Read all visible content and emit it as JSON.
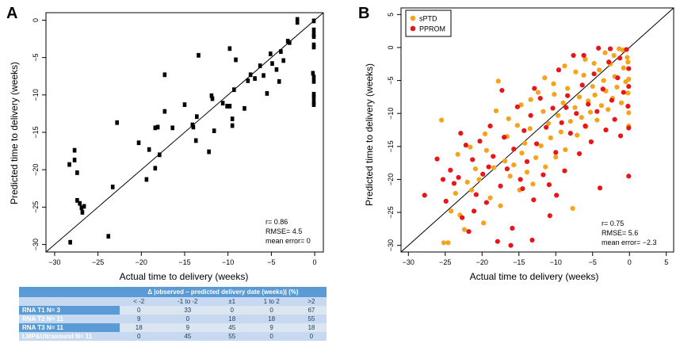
{
  "panels": {
    "a_letter": "A",
    "b_letter": "B"
  },
  "chart_data": [
    {
      "type": "scatter",
      "panel": "A",
      "xlabel": "Actual time to delivery (weeks)",
      "ylabel": "Predicted time to delivery (weeks)",
      "xlim": [
        -31,
        1
      ],
      "ylim": [
        -31,
        1
      ],
      "xticks": [
        -30,
        -25,
        -20,
        -15,
        -10,
        -5,
        0
      ],
      "yticks": [
        -30,
        -25,
        -20,
        -15,
        -10,
        -5,
        0
      ],
      "marker": "square",
      "marker_color": "#000000",
      "identity_line": true,
      "annotations": [
        "r= 0.86",
        "RMSE= 4.5",
        "mean error= 0"
      ],
      "points": [
        [
          -28.2,
          -29.7
        ],
        [
          -28.3,
          -19.3
        ],
        [
          -27.7,
          -17.4
        ],
        [
          -27.7,
          -18.7
        ],
        [
          -27.4,
          -20.4
        ],
        [
          -27.4,
          -24.1
        ],
        [
          -27.1,
          -24.5
        ],
        [
          -26.9,
          -25.1
        ],
        [
          -26.8,
          -25.7
        ],
        [
          -26.6,
          -24.9
        ],
        [
          -23.8,
          -28.9
        ],
        [
          -23.3,
          -22.3
        ],
        [
          -22.8,
          -13.7
        ],
        [
          -20.3,
          -16.4
        ],
        [
          -19.4,
          -21.3
        ],
        [
          -19.1,
          -17.3
        ],
        [
          -18.4,
          -14.4
        ],
        [
          -18.4,
          -19.8
        ],
        [
          -18.1,
          -14.3
        ],
        [
          -17.9,
          -18.0
        ],
        [
          -17.3,
          -12.2
        ],
        [
          -17.3,
          -7.3
        ],
        [
          -16.4,
          -14.4
        ],
        [
          -15.0,
          -11.3
        ],
        [
          -14.1,
          -14.0
        ],
        [
          -14.0,
          -14.3
        ],
        [
          -13.6,
          -12.9
        ],
        [
          -13.7,
          -16.1
        ],
        [
          -13.4,
          -4.7
        ],
        [
          -12.2,
          -17.6
        ],
        [
          -11.9,
          -10.1
        ],
        [
          -11.8,
          -10.5
        ],
        [
          -11.6,
          -14.8
        ],
        [
          -10.6,
          -11.1
        ],
        [
          -10.1,
          -11.5
        ],
        [
          -9.8,
          -11.5
        ],
        [
          -9.8,
          -3.8
        ],
        [
          -9.5,
          -14.1
        ],
        [
          -9.5,
          -13.2
        ],
        [
          -9.3,
          -9.3
        ],
        [
          -9.1,
          -5.3
        ],
        [
          -8.1,
          -11.8
        ],
        [
          -7.7,
          -8.1
        ],
        [
          -7.4,
          -7.3
        ],
        [
          -6.9,
          -7.8
        ],
        [
          -6.3,
          -6.1
        ],
        [
          -5.9,
          -7.4
        ],
        [
          -5.5,
          -9.8
        ],
        [
          -5.1,
          -4.5
        ],
        [
          -4.9,
          -5.8
        ],
        [
          -4.4,
          -6.6
        ],
        [
          -4.1,
          -8.2
        ],
        [
          -3.9,
          -4.2
        ],
        [
          -3.6,
          -5.4
        ],
        [
          -3.1,
          -2.8
        ],
        [
          -2.9,
          -3.0
        ],
        [
          -2.0,
          0.1
        ],
        [
          -2.0,
          -0.3
        ],
        [
          -0.1,
          -0.1
        ],
        [
          -0.1,
          -1.3
        ],
        [
          -0.1,
          -1.9
        ],
        [
          -0.1,
          -2.2
        ],
        [
          -0.1,
          -3.3
        ],
        [
          -0.1,
          -3.6
        ],
        [
          -0.2,
          -7.1
        ],
        [
          -0.1,
          -7.6
        ],
        [
          -0.1,
          -8.2
        ],
        [
          -0.1,
          -9.9
        ],
        [
          -0.1,
          -10.3
        ],
        [
          -0.1,
          -10.9
        ],
        [
          -0.1,
          -11.3
        ]
      ]
    },
    {
      "type": "scatter",
      "panel": "B",
      "xlabel": "Actual time to delivery (weeks)",
      "ylabel": "Predicted time to delivery (weeks)",
      "xlim": [
        -31,
        6
      ],
      "ylim": [
        -31,
        6
      ],
      "xticks": [
        -30,
        -25,
        -20,
        -15,
        -10,
        -5,
        0,
        5
      ],
      "yticks": [
        -30,
        -25,
        -20,
        -15,
        -10,
        -5,
        0,
        5
      ],
      "identity_line": true,
      "legend_position": "top-left",
      "annotations": [
        "r= 0.75",
        "RMSE= 5.6",
        "mean error= −2.3"
      ],
      "series": [
        {
          "name": "sPTD",
          "color": "#f5a31a",
          "points": [
            [
              -25.2,
              -29.6
            ],
            [
              -24.6,
              -29.6
            ],
            [
              -25.5,
              -11.0
            ],
            [
              -24.2,
              -24.8
            ],
            [
              -23.6,
              -22.1
            ],
            [
              -23.0,
              -25.4
            ],
            [
              -22.4,
              -27.6
            ],
            [
              -22.0,
              -20.4
            ],
            [
              -21.4,
              -21.6
            ],
            [
              -20.9,
              -18.4
            ],
            [
              -20.4,
              -20.0
            ],
            [
              -19.8,
              -26.6
            ],
            [
              -19.4,
              -15.6
            ],
            [
              -18.9,
              -22.8
            ],
            [
              -18.4,
              -18.2
            ],
            [
              -17.8,
              -5.1
            ],
            [
              -17.5,
              -24.0
            ],
            [
              -16.9,
              -17.2
            ],
            [
              -16.6,
              -13.5
            ],
            [
              -16.2,
              -19.5
            ],
            [
              -15.7,
              -17.8
            ],
            [
              -15.2,
              -11.8
            ],
            [
              -14.9,
              -21.6
            ],
            [
              -14.6,
              -16.0
            ],
            [
              -14.2,
              -14.5
            ],
            [
              -13.9,
              -18.9
            ],
            [
              -13.5,
              -12.3
            ],
            [
              -13.1,
              -20.7
            ],
            [
              -12.7,
              -16.7
            ],
            [
              -12.4,
              -6.8
            ],
            [
              -12.0,
              -14.9
            ],
            [
              -11.7,
              -9.7
            ],
            [
              -11.4,
              -18.1
            ],
            [
              -11.0,
              -11.5
            ],
            [
              -10.7,
              -13.7
            ],
            [
              -10.3,
              -5.5
            ],
            [
              -10.0,
              -16.6
            ],
            [
              -9.7,
              -10.3
            ],
            [
              -9.3,
              -12.8
            ],
            [
              -9.0,
              -8.4
            ],
            [
              -8.7,
              -15.5
            ],
            [
              -8.4,
              -6.2
            ],
            [
              -8.0,
              -11.2
            ],
            [
              -7.7,
              -24.4
            ],
            [
              -7.4,
              -9.1
            ],
            [
              -7.1,
              -13.3
            ],
            [
              -6.8,
              -7.5
            ],
            [
              -6.5,
              -10.6
            ],
            [
              -6.2,
              -4.2
            ],
            [
              -5.9,
              -12.0
            ],
            [
              -5.6,
              -8.1
            ],
            [
              -5.3,
              -9.8
            ],
            [
              -5.0,
              -5.9
            ],
            [
              -4.7,
              -7.2
            ],
            [
              -4.4,
              -11.0
            ],
            [
              -4.1,
              -3.4
            ],
            [
              -3.8,
              -8.8
            ],
            [
              -3.5,
              -5.0
            ],
            [
              -3.2,
              -6.6
            ],
            [
              -2.9,
              -9.4
            ],
            [
              -2.6,
              -2.5
            ],
            [
              -2.3,
              -7.7
            ],
            [
              -2.0,
              -4.4
            ],
            [
              -1.7,
              -6.0
            ],
            [
              -1.4,
              -0.2
            ],
            [
              -1.1,
              -8.4
            ],
            [
              -0.8,
              -3.1
            ],
            [
              -0.5,
              -5.2
            ],
            [
              -0.3,
              -1.5
            ],
            [
              -0.1,
              -9.9
            ],
            [
              -23.3,
              -16.2
            ],
            [
              -21.6,
              -15.1
            ],
            [
              -19.6,
              -13.1
            ],
            [
              -18.1,
              -9.6
            ],
            [
              -16.4,
              -10.8
            ],
            [
              -14.7,
              -8.7
            ],
            [
              -13.4,
              -7.9
            ],
            [
              -11.5,
              -4.6
            ],
            [
              -10.2,
              -7.1
            ],
            [
              -8.8,
              -2.8
            ],
            [
              -7.3,
              -3.7
            ],
            [
              -6.0,
              -1.8
            ],
            [
              -4.8,
              -2.4
            ],
            [
              -3.3,
              -0.8
            ],
            [
              -2.1,
              -1.2
            ],
            [
              -0.9,
              -0.4
            ],
            [
              -0.2,
              -2.2
            ],
            [
              -0.1,
              -4.8
            ],
            [
              -0.2,
              -6.9
            ],
            [
              -0.1,
              -11.9
            ]
          ]
        },
        {
          "name": "PPROM",
          "color": "#e8161b",
          "points": [
            [
              -27.8,
              -22.4
            ],
            [
              -25.3,
              -20.0
            ],
            [
              -24.9,
              -23.3
            ],
            [
              -24.3,
              -18.6
            ],
            [
              -23.8,
              -20.6
            ],
            [
              -23.2,
              -19.7
            ],
            [
              -22.7,
              -25.8
            ],
            [
              -22.2,
              -14.8
            ],
            [
              -21.8,
              -27.9
            ],
            [
              -21.3,
              -17.0
            ],
            [
              -20.8,
              -22.3
            ],
            [
              -20.3,
              -14.2
            ],
            [
              -19.9,
              -19.2
            ],
            [
              -19.4,
              -23.5
            ],
            [
              -18.9,
              -11.9
            ],
            [
              -18.5,
              -16.5
            ],
            [
              -17.9,
              -29.4
            ],
            [
              -17.5,
              -21.0
            ],
            [
              -17.0,
              -13.6
            ],
            [
              -16.6,
              -18.4
            ],
            [
              -16.1,
              -30.0
            ],
            [
              -15.7,
              -15.4
            ],
            [
              -15.2,
              -9.0
            ],
            [
              -14.8,
              -20.0
            ],
            [
              -14.3,
              -12.6
            ],
            [
              -13.9,
              -17.3
            ],
            [
              -13.4,
              -10.3
            ],
            [
              -13.0,
              -23.1
            ],
            [
              -12.6,
              -14.6
            ],
            [
              -12.1,
              -7.7
            ],
            [
              -11.7,
              -19.3
            ],
            [
              -11.3,
              -12.1
            ],
            [
              -10.8,
              -25.5
            ],
            [
              -10.4,
              -9.2
            ],
            [
              -10.0,
              -15.9
            ],
            [
              -9.6,
              -3.4
            ],
            [
              -9.2,
              -11.4
            ],
            [
              -8.8,
              -18.7
            ],
            [
              -8.4,
              -7.3
            ],
            [
              -8.0,
              -13.0
            ],
            [
              -7.6,
              -1.2
            ],
            [
              -7.2,
              -10.0
            ],
            [
              -6.8,
              -16.1
            ],
            [
              -6.4,
              -5.7
            ],
            [
              -6.0,
              -11.9
            ],
            [
              -5.6,
              -8.6
            ],
            [
              -5.2,
              -14.3
            ],
            [
              -4.8,
              -4.0
            ],
            [
              -4.4,
              -9.7
            ],
            [
              -4.0,
              -21.3
            ],
            [
              -3.6,
              -6.3
            ],
            [
              -3.2,
              -12.5
            ],
            [
              -2.8,
              -2.2
            ],
            [
              -2.4,
              -8.0
            ],
            [
              -2.0,
              -10.9
            ],
            [
              -1.6,
              -4.6
            ],
            [
              -1.2,
              -13.4
            ],
            [
              -0.8,
              -6.8
            ],
            [
              -0.4,
              -0.3
            ],
            [
              -0.1,
              -3.2
            ],
            [
              -0.1,
              -5.9
            ],
            [
              -0.2,
              -8.9
            ],
            [
              -0.1,
              -12.2
            ],
            [
              -0.1,
              -19.5
            ],
            [
              -26.1,
              -16.9
            ],
            [
              -21.1,
              -24.8
            ],
            [
              -15.9,
              -27.4
            ],
            [
              -13.2,
              -29.2
            ],
            [
              -6.2,
              -1.2
            ],
            [
              -4.2,
              -0.1
            ],
            [
              -2.6,
              -0.2
            ],
            [
              -1.3,
              -1.6
            ],
            [
              -10.9,
              -20.8
            ],
            [
              -8.6,
              -9.1
            ],
            [
              -12.9,
              -6.2
            ],
            [
              -14.5,
              -21.4
            ],
            [
              -17.3,
              -6.5
            ],
            [
              -19.1,
              -18.1
            ],
            [
              -22.9,
              -13.0
            ],
            [
              -9.9,
              -22.4
            ]
          ]
        }
      ]
    }
  ],
  "table": {
    "header_title": "Δ |observed – predicted delivery date (weeks)| (%)",
    "columns": [
      "< -2",
      "-1 to -2",
      "±1",
      "1 to 2",
      ">2"
    ],
    "rows": [
      {
        "label": "RNA T1 N= 3",
        "values": [
          "0",
          "33",
          "0",
          "0",
          "67"
        ]
      },
      {
        "label": "RNA  T2 N= 11",
        "values": [
          "9",
          "0",
          "18",
          "18",
          "55"
        ]
      },
      {
        "label": "RNA  T3 N= 11",
        "values": [
          "18",
          "9",
          "45",
          "9",
          "18"
        ]
      },
      {
        "label": "LMP&Ultrasound N= 11",
        "values": [
          "0",
          "45",
          "55",
          "0",
          "0"
        ]
      }
    ]
  }
}
